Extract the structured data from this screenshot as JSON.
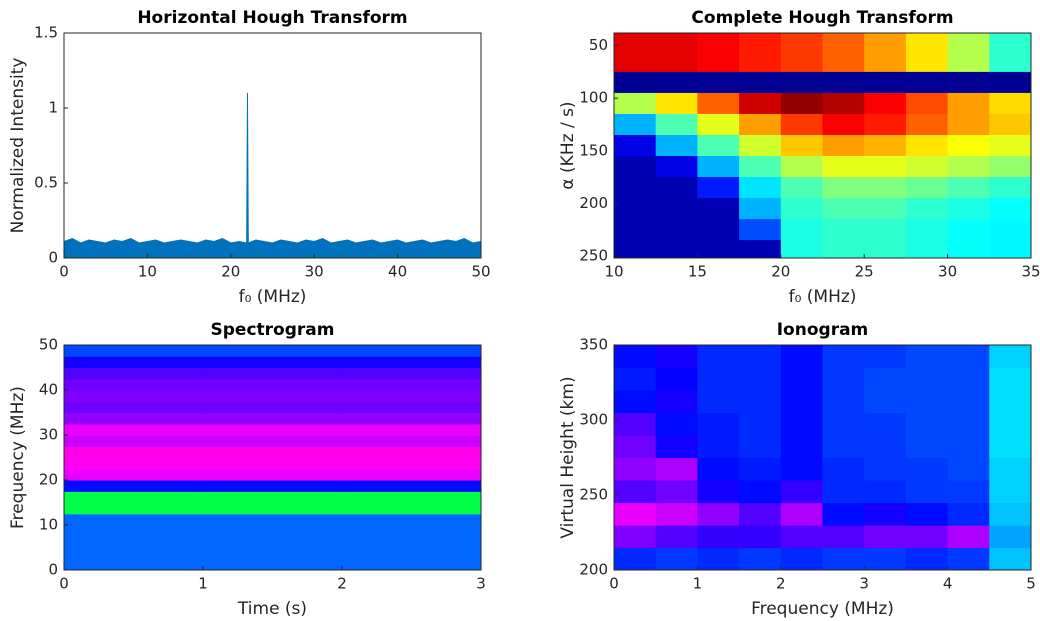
{
  "chart_data": [
    {
      "type": "area",
      "title": "Horizontal Hough Transform",
      "x_label": "f₀ (MHz)",
      "y_label": "Normalized Intensity",
      "x": [
        0,
        1,
        2,
        3,
        4,
        5,
        6,
        7,
        8,
        9,
        10,
        11,
        12,
        13,
        14,
        15,
        16,
        17,
        18,
        19,
        20,
        21,
        21.9,
        22,
        22.1,
        23,
        24,
        25,
        26,
        27,
        28,
        29,
        30,
        31,
        32,
        33,
        34,
        35,
        36,
        37,
        38,
        39,
        40,
        41,
        42,
        43,
        44,
        45,
        46,
        47,
        48,
        49,
        50
      ],
      "values": [
        0.11,
        0.13,
        0.1,
        0.12,
        0.11,
        0.1,
        0.12,
        0.11,
        0.13,
        0.1,
        0.11,
        0.12,
        0.1,
        0.11,
        0.12,
        0.11,
        0.1,
        0.12,
        0.11,
        0.13,
        0.1,
        0.11,
        0.1,
        1.1,
        0.1,
        0.12,
        0.11,
        0.1,
        0.12,
        0.11,
        0.1,
        0.12,
        0.11,
        0.13,
        0.1,
        0.11,
        0.12,
        0.1,
        0.11,
        0.12,
        0.1,
        0.11,
        0.12,
        0.1,
        0.11,
        0.12,
        0.1,
        0.11,
        0.12,
        0.11,
        0.13,
        0.1,
        0.11
      ],
      "color": "#0072bd",
      "xlim": [
        0,
        50
      ],
      "ylim": [
        0,
        1.5
      ],
      "xticks": [
        0,
        10,
        20,
        30,
        40,
        50
      ],
      "yticks": [
        0,
        0.5,
        1,
        1.5
      ]
    },
    {
      "type": "heatmap",
      "title": "Complete Hough Transform",
      "x_label": "f₀ (MHz)",
      "y_label": "α (KHz / s)",
      "colormap": "jet",
      "y_reverse": true,
      "x": [
        11.25,
        13.75,
        16.25,
        18.75,
        21.25,
        23.75,
        26.25,
        28.75,
        31.25,
        33.75
      ],
      "y": [
        45,
        65,
        85,
        105,
        125,
        145,
        165,
        185,
        205,
        225,
        245
      ],
      "values": [
        [
          0.9,
          0.9,
          0.88,
          0.85,
          0.82,
          0.78,
          0.72,
          0.65,
          0.55,
          0.42
        ],
        [
          0.9,
          0.9,
          0.88,
          0.85,
          0.82,
          0.78,
          0.72,
          0.65,
          0.55,
          0.42
        ],
        [
          0.02,
          0.02,
          0.02,
          0.02,
          0.02,
          0.02,
          0.02,
          0.02,
          0.02,
          0.02
        ],
        [
          0.55,
          0.65,
          0.78,
          0.92,
          0.98,
          0.95,
          0.88,
          0.8,
          0.72,
          0.66
        ],
        [
          0.3,
          0.45,
          0.6,
          0.72,
          0.82,
          0.88,
          0.85,
          0.78,
          0.72,
          0.68
        ],
        [
          0.1,
          0.3,
          0.45,
          0.58,
          0.68,
          0.72,
          0.7,
          0.65,
          0.62,
          0.6
        ],
        [
          0.05,
          0.1,
          0.3,
          0.45,
          0.55,
          0.6,
          0.6,
          0.58,
          0.55,
          0.52
        ],
        [
          0.05,
          0.05,
          0.15,
          0.35,
          0.45,
          0.5,
          0.5,
          0.48,
          0.45,
          0.42
        ],
        [
          0.05,
          0.05,
          0.05,
          0.3,
          0.42,
          0.45,
          0.45,
          0.42,
          0.4,
          0.38
        ],
        [
          0.05,
          0.05,
          0.05,
          0.2,
          0.4,
          0.42,
          0.42,
          0.4,
          0.38,
          0.37
        ],
        [
          0.05,
          0.05,
          0.05,
          0.05,
          0.4,
          0.42,
          0.42,
          0.4,
          0.38,
          0.37
        ]
      ],
      "xlim": [
        10,
        35
      ],
      "ylim": [
        38,
        252
      ],
      "xticks": [
        10,
        15,
        20,
        25,
        30,
        35
      ],
      "yticks": [
        50,
        100,
        150,
        200,
        250
      ]
    },
    {
      "type": "heatmap",
      "title": "Spectrogram",
      "x_label": "Time (s)",
      "y_label": "Frequency (MHz)",
      "colormap": "hsv",
      "y_reverse": false,
      "x": [
        0.5,
        1.5,
        2.5
      ],
      "y": [
        1.25,
        3.75,
        6.25,
        8.75,
        11.25,
        13.75,
        16.25,
        18.75,
        21.25,
        23.75,
        26.25,
        28.75,
        31.25,
        33.75,
        36.25,
        38.75,
        41.25,
        43.75,
        46.25,
        48.75
      ],
      "values": [
        [
          0.6,
          0.6,
          0.6
        ],
        [
          0.6,
          0.6,
          0.6
        ],
        [
          0.6,
          0.6,
          0.6
        ],
        [
          0.6,
          0.6,
          0.6
        ],
        [
          0.6,
          0.6,
          0.6
        ],
        [
          0.38,
          0.38,
          0.38
        ],
        [
          0.38,
          0.38,
          0.38
        ],
        [
          0.66,
          0.66,
          0.66
        ],
        [
          0.82,
          0.82,
          0.82
        ],
        [
          0.84,
          0.84,
          0.84
        ],
        [
          0.85,
          0.85,
          0.85
        ],
        [
          0.8,
          0.8,
          0.8
        ],
        [
          0.82,
          0.82,
          0.82
        ],
        [
          0.76,
          0.76,
          0.76
        ],
        [
          0.74,
          0.74,
          0.74
        ],
        [
          0.75,
          0.75,
          0.75
        ],
        [
          0.74,
          0.74,
          0.74
        ],
        [
          0.72,
          0.72,
          0.72
        ],
        [
          0.68,
          0.68,
          0.68
        ],
        [
          0.62,
          0.62,
          0.62
        ]
      ],
      "xlim": [
        0,
        3
      ],
      "ylim": [
        0,
        50
      ],
      "xticks": [
        0,
        1,
        2,
        3
      ],
      "yticks": [
        0,
        10,
        20,
        30,
        40,
        50
      ]
    },
    {
      "type": "heatmap",
      "title": "Ionogram",
      "x_label": "Frequency (MHz)",
      "y_label": "Virtual Height (km)",
      "colormap": "hsv",
      "y_reverse": false,
      "x": [
        0.25,
        0.75,
        1.25,
        1.75,
        2.25,
        2.75,
        3.25,
        3.75,
        4.25,
        4.75
      ],
      "y": [
        207.5,
        222.5,
        237.5,
        252.5,
        267.5,
        282.5,
        297.5,
        312.5,
        327.5,
        342.5
      ],
      "values": [
        [
          0.64,
          0.63,
          0.64,
          0.63,
          0.64,
          0.63,
          0.63,
          0.64,
          0.63,
          0.54
        ],
        [
          0.75,
          0.72,
          0.7,
          0.7,
          0.72,
          0.72,
          0.74,
          0.74,
          0.78,
          0.56
        ],
        [
          0.82,
          0.8,
          0.76,
          0.72,
          0.78,
          0.66,
          0.68,
          0.66,
          0.64,
          0.54
        ],
        [
          0.72,
          0.74,
          0.68,
          0.66,
          0.7,
          0.64,
          0.64,
          0.63,
          0.63,
          0.53
        ],
        [
          0.76,
          0.78,
          0.66,
          0.65,
          0.66,
          0.64,
          0.63,
          0.63,
          0.62,
          0.53
        ],
        [
          0.74,
          0.68,
          0.65,
          0.64,
          0.66,
          0.63,
          0.63,
          0.62,
          0.62,
          0.52
        ],
        [
          0.72,
          0.66,
          0.65,
          0.64,
          0.66,
          0.63,
          0.63,
          0.62,
          0.62,
          0.52
        ],
        [
          0.66,
          0.68,
          0.64,
          0.64,
          0.66,
          0.63,
          0.62,
          0.62,
          0.62,
          0.52
        ],
        [
          0.65,
          0.67,
          0.64,
          0.64,
          0.66,
          0.63,
          0.62,
          0.62,
          0.62,
          0.52
        ],
        [
          0.66,
          0.68,
          0.64,
          0.64,
          0.66,
          0.63,
          0.63,
          0.62,
          0.62,
          0.53
        ]
      ],
      "xlim": [
        0,
        5
      ],
      "ylim": [
        200,
        350
      ],
      "xticks": [
        0,
        1,
        2,
        3,
        4,
        5
      ],
      "yticks": [
        200,
        250,
        300,
        350
      ]
    }
  ]
}
